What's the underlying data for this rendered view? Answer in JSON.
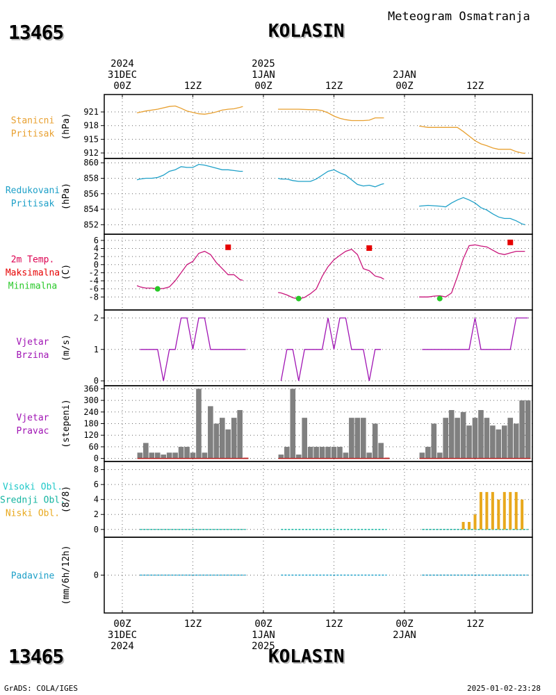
{
  "header": {
    "station_id": "13465",
    "station_name": "KOLASIN",
    "title": "Meteogram Osmatranja"
  },
  "footer": {
    "station_id": "13465",
    "station_name": "KOLASIN",
    "credit": "GrADS: COLA/IGES",
    "timestamp": "2025-01-02-23:28"
  },
  "time_axis": {
    "top_labels": [
      {
        "t": 0,
        "lines": [
          "2024",
          "31DEC",
          "00Z"
        ]
      },
      {
        "t": 12,
        "lines": [
          "12Z"
        ]
      },
      {
        "t": 24,
        "lines": [
          "2025",
          "1JAN",
          "00Z"
        ]
      },
      {
        "t": 36,
        "lines": [
          "12Z"
        ]
      },
      {
        "t": 48,
        "lines": [
          "2JAN",
          "00Z"
        ]
      },
      {
        "t": 60,
        "lines": [
          "12Z"
        ]
      }
    ],
    "bottom_labels": [
      {
        "t": 0,
        "lines": [
          "00Z",
          "31DEC",
          "2024"
        ]
      },
      {
        "t": 12,
        "lines": [
          "12Z"
        ]
      },
      {
        "t": 24,
        "lines": [
          "00Z",
          "1JAN",
          "2025"
        ]
      },
      {
        "t": 36,
        "lines": [
          "12Z"
        ]
      },
      {
        "t": 48,
        "lines": [
          "00Z",
          "2JAN"
        ]
      },
      {
        "t": 60,
        "lines": [
          "12Z"
        ]
      }
    ]
  },
  "colors": {
    "pressure": "#e8a030",
    "redpressure": "#1ea0c8",
    "temp_label": "#dc0050",
    "temp_line": "#c8147a",
    "tmax": "#e60000",
    "tmin": "#28c828",
    "wind": "#a014b4",
    "bars": "#808080",
    "bar_base": "#b41e1e",
    "cloud_high": "#1ec8c8",
    "cloud_mid": "#14b4a0",
    "cloud_low": "#e8a81c",
    "precip": "#1ea0c8"
  },
  "panels": {
    "pressure": {
      "labels": [
        "Stanicni",
        "Pritisak"
      ],
      "unit": "(hPa)"
    },
    "redpressure": {
      "labels": [
        "Redukovani",
        "Pritisak"
      ],
      "unit": "(hPa)"
    },
    "temperature": {
      "labels": [
        "2m Temp.",
        "Maksimalna",
        "Minimalna"
      ],
      "unit": "(C)"
    },
    "windspeed": {
      "labels": [
        "Vjetar",
        "Brzina"
      ],
      "unit": "(m/s)"
    },
    "winddir": {
      "labels": [
        "Vjetar",
        "Pravac"
      ],
      "unit": "(stepeni)"
    },
    "clouds": {
      "labels": [
        "Visoki Obl.",
        "Srednji Obl.",
        "Niski Obl."
      ],
      "unit": "(8/8)"
    },
    "precip": {
      "labels": [
        "Padavine"
      ],
      "unit": "(mm/6h/12h)"
    }
  },
  "chart_data": [
    {
      "type": "line",
      "panel": "pressure",
      "ylabel": "(hPa)",
      "ylim": [
        911.4,
        923.6
      ],
      "yticks": [
        912,
        915,
        918,
        921
      ],
      "grid": true,
      "segments": [
        {
          "t": [
            2.5,
            4,
            6,
            8,
            9,
            10,
            11,
            12,
            13,
            14,
            15,
            16,
            17,
            18,
            19,
            20,
            20.5
          ],
          "v": [
            920.8,
            921.2,
            921.6,
            922.2,
            922.3,
            921.8,
            921.2,
            920.9,
            920.6,
            920.5,
            920.7,
            921.0,
            921.4,
            921.6,
            921.7,
            922.0,
            922.2
          ]
        },
        {
          "t": [
            26.5,
            28,
            30,
            32,
            33,
            34,
            35,
            36,
            37,
            38,
            39,
            40,
            41,
            42,
            43,
            44,
            44.5
          ],
          "v": [
            921.6,
            921.6,
            921.6,
            921.5,
            921.5,
            921.3,
            920.8,
            920.1,
            919.6,
            919.3,
            919.1,
            919.1,
            919.1,
            919.2,
            919.7,
            919.7,
            919.7
          ]
        },
        {
          "t": [
            50.5,
            52,
            54,
            56,
            57,
            58,
            59,
            60,
            61,
            62,
            63,
            64,
            65,
            66,
            67,
            68,
            68.5
          ],
          "v": [
            917.9,
            917.6,
            917.6,
            917.6,
            917.6,
            916.7,
            915.7,
            914.7,
            914.0,
            913.6,
            913.1,
            912.8,
            912.8,
            912.8,
            912.3,
            912.0,
            911.9
          ]
        }
      ]
    },
    {
      "type": "line",
      "panel": "redpressure",
      "ylabel": "(hPa)",
      "ylim": [
        851.4,
        860.2
      ],
      "yticks": [
        852,
        854,
        856,
        858,
        860
      ],
      "grid": true,
      "segments": [
        {
          "t": [
            2.5,
            3,
            4,
            5,
            6,
            7,
            8,
            9,
            10,
            11,
            12,
            13,
            14,
            15,
            16,
            17,
            18,
            19,
            20,
            20.5
          ],
          "v": [
            857.8,
            857.9,
            858.0,
            858.0,
            858.1,
            858.4,
            858.9,
            859.1,
            859.5,
            859.4,
            859.4,
            859.8,
            859.7,
            859.5,
            859.3,
            859.1,
            859.1,
            859.0,
            858.9,
            858.9
          ]
        },
        {
          "t": [
            26.5,
            27,
            28,
            29,
            30,
            31,
            32,
            33,
            34,
            35,
            36,
            37,
            38,
            39,
            40,
            41,
            42,
            43,
            44,
            44.5
          ],
          "v": [
            858.0,
            857.9,
            857.9,
            857.7,
            857.6,
            857.6,
            857.6,
            857.9,
            858.4,
            858.9,
            859.1,
            858.7,
            858.4,
            857.8,
            857.2,
            857.0,
            857.1,
            856.9,
            857.2,
            857.3
          ]
        },
        {
          "t": [
            50.5,
            52,
            54,
            55,
            56,
            57,
            58,
            59,
            60,
            61,
            62,
            63,
            64,
            65,
            66,
            67,
            68,
            68.5
          ],
          "v": [
            854.4,
            854.5,
            854.4,
            854.3,
            854.8,
            855.2,
            855.5,
            855.2,
            854.8,
            854.2,
            853.9,
            853.4,
            853.0,
            852.8,
            852.8,
            852.5,
            852.1,
            852.0
          ]
        }
      ]
    },
    {
      "type": "line",
      "panel": "temperature",
      "ylabel": "(C)",
      "ylim": [
        -9.5,
        6.5
      ],
      "yticks": [
        -8,
        -6,
        -4,
        -2,
        0,
        2,
        4,
        6
      ],
      "grid": true,
      "segments": [
        {
          "t": [
            2.5,
            3,
            4,
            5,
            6,
            7,
            8,
            9,
            10,
            11,
            12,
            13,
            14,
            15,
            16,
            17,
            18,
            19,
            20,
            20.5
          ],
          "v": [
            -5.2,
            -5.5,
            -5.8,
            -5.8,
            -6.0,
            -5.9,
            -5.5,
            -4.0,
            -2.0,
            0.0,
            0.8,
            2.8,
            3.3,
            2.5,
            0.5,
            -1.0,
            -2.5,
            -2.5,
            -3.7,
            -3.9
          ]
        },
        {
          "t": [
            26.5,
            27,
            28,
            29,
            30,
            31,
            32,
            33,
            34,
            35,
            36,
            37,
            38,
            39,
            40,
            41,
            42,
            43,
            44,
            44.5
          ],
          "v": [
            -6.9,
            -7.0,
            -7.5,
            -8.2,
            -8.5,
            -8.1,
            -7.2,
            -6.0,
            -2.9,
            -0.5,
            1.2,
            2.3,
            3.3,
            3.8,
            2.5,
            -1.0,
            -1.5,
            -2.8,
            -3.2,
            -3.6
          ]
        },
        {
          "t": [
            50.5,
            52,
            53,
            54,
            55,
            56,
            57,
            58,
            59,
            60,
            61,
            62,
            63,
            64,
            65,
            66,
            67,
            68,
            68.5
          ],
          "v": [
            -8.0,
            -8.0,
            -7.8,
            -7.7,
            -8.0,
            -7.0,
            -3.0,
            1.5,
            4.7,
            4.9,
            4.6,
            4.4,
            3.6,
            2.8,
            2.5,
            2.9,
            3.3,
            3.3,
            3.3
          ]
        }
      ],
      "tmax": [
        {
          "t": 18,
          "v": 4.3
        },
        {
          "t": 42,
          "v": 4.1
        },
        {
          "t": 66,
          "v": 5.5
        }
      ],
      "tmin": [
        {
          "t": 6,
          "v": -6.0
        },
        {
          "t": 30,
          "v": -8.4
        },
        {
          "t": 54,
          "v": -8.4
        }
      ]
    },
    {
      "type": "line",
      "panel": "windspeed",
      "ylabel": "(m/s)",
      "ylim": [
        0,
        2.1
      ],
      "yticks": [
        0,
        1,
        2
      ],
      "grid": true,
      "segments": [
        {
          "t": [
            3,
            5,
            6,
            7,
            8,
            9,
            10,
            11,
            12,
            13,
            14,
            15,
            16,
            17,
            18,
            19,
            20,
            21
          ],
          "v": [
            1,
            1,
            1,
            0,
            1,
            1,
            2,
            2,
            1,
            2,
            2,
            1,
            1,
            1,
            1,
            1,
            1,
            1
          ]
        },
        {
          "t": [
            27,
            28,
            29,
            30,
            31,
            32,
            33,
            34,
            35,
            36,
            37,
            38,
            39,
            40,
            41,
            42,
            43,
            44
          ],
          "v": [
            0,
            1,
            1,
            0,
            1,
            1,
            1,
            1,
            2,
            1,
            2,
            2,
            1,
            1,
            1,
            0,
            1,
            1
          ]
        },
        {
          "t": [
            51,
            52,
            53,
            54,
            55,
            56,
            57,
            58,
            59,
            60,
            61,
            62,
            63,
            64,
            65,
            66,
            67,
            68,
            69
          ],
          "v": [
            1,
            1,
            1,
            1,
            1,
            1,
            1,
            1,
            1,
            2,
            1,
            1,
            1,
            1,
            1,
            1,
            2,
            2,
            2
          ]
        }
      ]
    },
    {
      "type": "bar",
      "panel": "winddir",
      "ylabel": "(stepeni)",
      "ylim": [
        -5,
        365
      ],
      "yticks": [
        0,
        60,
        120,
        180,
        240,
        300,
        360
      ],
      "grid": true,
      "t": [
        3,
        4,
        5,
        6,
        7,
        8,
        9,
        10,
        11,
        12,
        13,
        14,
        15,
        16,
        17,
        18,
        19,
        20,
        21,
        27,
        28,
        29,
        30,
        31,
        32,
        33,
        34,
        35,
        36,
        37,
        38,
        39,
        40,
        41,
        42,
        43,
        44,
        45,
        51,
        52,
        53,
        54,
        55,
        56,
        57,
        58,
        59,
        60,
        61,
        62,
        63,
        64,
        65,
        66,
        67,
        68,
        69
      ],
      "values": [
        30,
        80,
        30,
        30,
        20,
        30,
        30,
        60,
        60,
        30,
        360,
        30,
        270,
        180,
        210,
        150,
        210,
        250,
        0,
        20,
        60,
        360,
        20,
        210,
        60,
        60,
        60,
        60,
        60,
        60,
        30,
        210,
        210,
        210,
        30,
        180,
        80,
        0,
        30,
        60,
        180,
        30,
        210,
        250,
        210,
        240,
        170,
        210,
        250,
        210,
        170,
        150,
        170,
        210,
        180,
        300,
        300
      ]
    },
    {
      "type": "bar",
      "panel": "clouds",
      "ylabel": "(8/8)",
      "ylim": [
        -0.3,
        8.8
      ],
      "yticks": [
        0,
        2,
        4,
        6,
        8
      ],
      "grid": true,
      "series": [
        {
          "name": "Niski Obl.",
          "t": [
            58,
            59,
            60,
            61,
            62,
            63,
            64,
            65,
            66,
            67,
            68
          ],
          "values": [
            1,
            1,
            2,
            5,
            5,
            5,
            4,
            5,
            5,
            5,
            4
          ]
        }
      ],
      "zero_segments": [
        [
          3,
          21
        ],
        [
          27,
          45
        ],
        [
          51,
          69
        ]
      ]
    },
    {
      "type": "line",
      "panel": "precip",
      "ylabel": "(mm/6h/12h)",
      "ylim": [
        -1,
        1
      ],
      "yticks": [
        0
      ],
      "grid": true,
      "zero_segments": [
        [
          3,
          21
        ],
        [
          27,
          45
        ],
        [
          51,
          69
        ]
      ]
    }
  ]
}
